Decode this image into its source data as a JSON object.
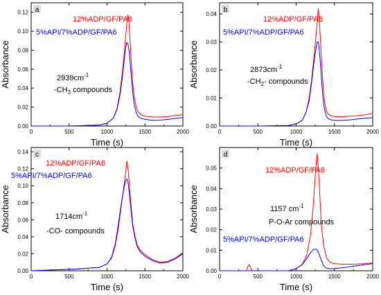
{
  "chart_data": [
    {
      "type": "line",
      "panel_letter": "a",
      "xlabel": "Time (s)",
      "ylabel": "Absorbance",
      "xlim": [
        0,
        2000
      ],
      "ylim": [
        0,
        0.13
      ],
      "xticks": [
        0,
        500,
        1000,
        1500,
        2000
      ],
      "yticks": [
        0.0,
        0.02,
        0.04,
        0.06,
        0.08,
        0.1,
        0.12
      ],
      "ytick_labels": [
        "0.00",
        "0.02",
        "0.04",
        "0.06",
        "0.08",
        "0.10",
        "0.12"
      ],
      "annotation_line1": "2939cm",
      "annotation_line1_sup": "-1",
      "annotation_line2": "-CH",
      "annotation_line2_sub": "3",
      "annotation_line2_tail": " compounds",
      "series": [
        {
          "name": "12%ADP/GF/PA6",
          "color": "#ff0000",
          "x": [
            0,
            500,
            900,
            1000,
            1080,
            1130,
            1170,
            1200,
            1225,
            1245,
            1260,
            1275,
            1290,
            1305,
            1320,
            1340,
            1360,
            1385,
            1410,
            1450,
            1500,
            1600,
            1700,
            1800,
            1900,
            2000
          ],
          "y": [
            0.0,
            0.0,
            0.001,
            0.003,
            0.008,
            0.018,
            0.035,
            0.055,
            0.075,
            0.094,
            0.107,
            0.117,
            0.108,
            0.088,
            0.068,
            0.045,
            0.03,
            0.02,
            0.015,
            0.012,
            0.0105,
            0.0095,
            0.0095,
            0.01,
            0.011,
            0.012
          ]
        },
        {
          "name": "5%API/7%ADP/GF/PA6",
          "color": "#0000ff",
          "x": [
            0,
            500,
            900,
            1000,
            1080,
            1130,
            1170,
            1200,
            1225,
            1245,
            1260,
            1275,
            1290,
            1305,
            1320,
            1340,
            1360,
            1385,
            1410,
            1450,
            1500,
            1600,
            1700,
            1800,
            1900,
            2000
          ],
          "y": [
            0.0,
            0.0,
            0.001,
            0.003,
            0.008,
            0.017,
            0.032,
            0.05,
            0.068,
            0.082,
            0.088,
            0.087,
            0.08,
            0.067,
            0.052,
            0.035,
            0.022,
            0.014,
            0.01,
            0.008,
            0.007,
            0.006,
            0.0062,
            0.007,
            0.008,
            0.009
          ]
        }
      ]
    },
    {
      "type": "line",
      "panel_letter": "b",
      "xlabel": "Time (s)",
      "ylabel": "Absorbance",
      "xlim": [
        0,
        2000
      ],
      "ylim": [
        0,
        0.044
      ],
      "xticks": [
        0,
        500,
        1000,
        1500,
        2000
      ],
      "yticks": [
        0.0,
        0.01,
        0.02,
        0.03,
        0.04
      ],
      "ytick_labels": [
        "0.00",
        "0.01",
        "0.02",
        "0.03",
        "0.04"
      ],
      "annotation_line1": "2873cm",
      "annotation_line1_sup": "-1",
      "annotation_line2": "-CH",
      "annotation_line2_sub": "2",
      "annotation_line2_tail": "- compounds",
      "series": [
        {
          "name": "12%ADP/GF/PA6",
          "color": "#ff0000",
          "x": [
            0,
            500,
            900,
            1000,
            1080,
            1130,
            1170,
            1200,
            1230,
            1255,
            1275,
            1290,
            1300,
            1315,
            1330,
            1350,
            1370,
            1395,
            1420,
            1460,
            1500,
            1600,
            1700,
            1800,
            1900,
            2000
          ],
          "y": [
            0.0,
            0.0,
            0.0002,
            0.0008,
            0.002,
            0.005,
            0.01,
            0.016,
            0.024,
            0.031,
            0.037,
            0.042,
            0.039,
            0.032,
            0.024,
            0.015,
            0.009,
            0.0055,
            0.0042,
            0.0036,
            0.0034,
            0.0033,
            0.0035,
            0.0037,
            0.004,
            0.0045
          ]
        },
        {
          "name": "5%API/7%ADP/GF/PA6",
          "color": "#0000ff",
          "x": [
            0,
            500,
            900,
            1000,
            1080,
            1130,
            1170,
            1200,
            1230,
            1255,
            1275,
            1290,
            1300,
            1315,
            1330,
            1350,
            1370,
            1395,
            1420,
            1460,
            1500,
            1600,
            1700,
            1800,
            1900,
            2000
          ],
          "y": [
            0.0,
            0.0,
            0.0002,
            0.0008,
            0.002,
            0.005,
            0.009,
            0.015,
            0.022,
            0.027,
            0.03,
            0.03,
            0.028,
            0.023,
            0.017,
            0.01,
            0.006,
            0.0035,
            0.0026,
            0.0022,
            0.002,
            0.002,
            0.0022,
            0.0025,
            0.0028,
            0.003
          ]
        }
      ]
    },
    {
      "type": "line",
      "panel_letter": "c",
      "xlabel": "Time (s)",
      "ylabel": "Absorbance",
      "xlim": [
        0,
        2000
      ],
      "ylim": [
        0,
        0.145
      ],
      "xticks": [
        0,
        500,
        1000,
        1500,
        2000
      ],
      "yticks": [
        0.0,
        0.02,
        0.04,
        0.06,
        0.08,
        0.1,
        0.12,
        0.14
      ],
      "ytick_labels": [
        "0.00",
        "0.02",
        "0.04",
        "0.06",
        "0.08",
        "0.10",
        "0.12",
        "0.14"
      ],
      "annotation_line1": "1714cm",
      "annotation_line1_sup": "-1",
      "annotation_line2": "-CO- compounds",
      "annotation_line2_sub": "",
      "annotation_line2_tail": "",
      "series": [
        {
          "name": "12%ADP/GF/PA6",
          "color": "#ff0000",
          "x": [
            0,
            300,
            600,
            900,
            1000,
            1060,
            1110,
            1150,
            1190,
            1220,
            1245,
            1262,
            1278,
            1295,
            1315,
            1340,
            1370,
            1400,
            1440,
            1500,
            1600,
            1700,
            1800,
            1900,
            2000
          ],
          "y": [
            0.0,
            0.001,
            0.002,
            0.004,
            0.008,
            0.015,
            0.03,
            0.05,
            0.078,
            0.098,
            0.115,
            0.129,
            0.12,
            0.1,
            0.078,
            0.055,
            0.04,
            0.03,
            0.024,
            0.019,
            0.013,
            0.01,
            0.011,
            0.015,
            0.021
          ]
        },
        {
          "name": "5%API/7%ADP/GF/PA6",
          "color": "#0000ff",
          "x": [
            0,
            300,
            600,
            900,
            1000,
            1060,
            1110,
            1150,
            1190,
            1220,
            1245,
            1262,
            1278,
            1295,
            1315,
            1340,
            1370,
            1400,
            1440,
            1500,
            1600,
            1700,
            1800,
            1900,
            2000
          ],
          "y": [
            0.0,
            0.001,
            0.002,
            0.004,
            0.008,
            0.016,
            0.032,
            0.055,
            0.08,
            0.096,
            0.106,
            0.108,
            0.103,
            0.09,
            0.072,
            0.052,
            0.038,
            0.028,
            0.022,
            0.017,
            0.012,
            0.009,
            0.01,
            0.014,
            0.02
          ]
        }
      ]
    },
    {
      "type": "line",
      "panel_letter": "d",
      "xlabel": "Time (s)",
      "ylabel": "Absorbance",
      "xlim": [
        0,
        2000
      ],
      "ylim": [
        0,
        0.06
      ],
      "xticks": [
        0,
        500,
        1000,
        1500,
        2000
      ],
      "yticks": [
        0.0,
        0.01,
        0.02,
        0.03,
        0.04,
        0.05
      ],
      "ytick_labels": [
        "0.00",
        "0.01",
        "0.02",
        "0.03",
        "0.04",
        "0.05"
      ],
      "annotation_line1": "1157 cm",
      "annotation_line1_sup": "-1",
      "annotation_line2": "P-O-Ar compounds",
      "annotation_line2_sub": "",
      "annotation_line2_tail": "",
      "series": [
        {
          "name": "12%ADP/GF/PA6",
          "color": "#ff0000",
          "x": [
            0,
            350,
            370,
            385,
            395,
            410,
            430,
            500,
            900,
            1000,
            1080,
            1140,
            1190,
            1220,
            1245,
            1265,
            1275,
            1290,
            1310,
            1330,
            1360,
            1400,
            1450,
            1500,
            1600,
            1700,
            1800,
            1900,
            2000
          ],
          "y": [
            0.0,
            0.0,
            0.002,
            0.003,
            0.0025,
            0.001,
            0.0,
            0.0,
            0.0,
            0.001,
            0.003,
            0.008,
            0.018,
            0.03,
            0.044,
            0.054,
            0.057,
            0.05,
            0.036,
            0.022,
            0.012,
            0.006,
            0.004,
            0.0035,
            0.0032,
            0.0032,
            0.0033,
            0.0035,
            0.0038
          ]
        },
        {
          "name": "5%API/7%ADP/GF/PA6",
          "color": "#0000ff",
          "x": [
            0,
            500,
            900,
            1000,
            1080,
            1140,
            1190,
            1230,
            1260,
            1285,
            1310,
            1340,
            1370,
            1400,
            1450,
            1500,
            1600,
            1700,
            1800,
            1900,
            2000
          ],
          "y": [
            0.0,
            0.0,
            0.0,
            0.001,
            0.003,
            0.006,
            0.009,
            0.0105,
            0.0105,
            0.0095,
            0.007,
            0.004,
            0.002,
            0.0012,
            0.001,
            0.0011,
            0.0015,
            0.002,
            0.0025,
            0.003,
            0.0035
          ]
        }
      ]
    }
  ]
}
